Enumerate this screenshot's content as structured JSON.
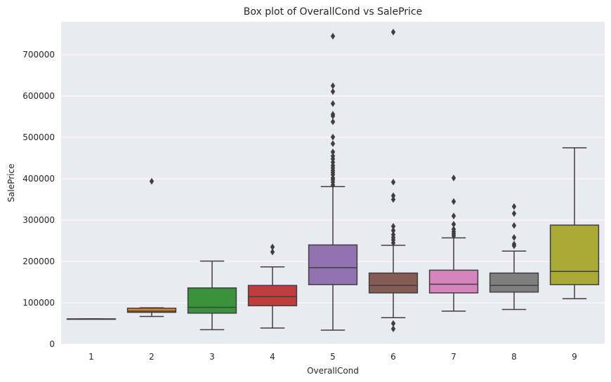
{
  "chart_data": {
    "type": "box",
    "title": "Box plot of OverallCond vs SalePrice",
    "xlabel": "OverallCond",
    "ylabel": "SalePrice",
    "ylim": [
      0,
      780000
    ],
    "yticks": [
      0,
      100000,
      200000,
      300000,
      400000,
      500000,
      600000,
      700000
    ],
    "ytick_labels": [
      "0",
      "100000",
      "200000",
      "300000",
      "400000",
      "500000",
      "600000",
      "700000"
    ],
    "grid": true,
    "categories": [
      "1",
      "2",
      "3",
      "4",
      "5",
      "6",
      "7",
      "8",
      "9"
    ],
    "boxes": [
      {
        "category": "1",
        "whisker_low": 61000,
        "q1": 61000,
        "median": 61000,
        "q3": 61000,
        "whisker_high": 61000,
        "color": "#3274a1",
        "outliers": []
      },
      {
        "category": "2",
        "whisker_low": 67000,
        "q1": 77000,
        "median": 80000,
        "q3": 87000,
        "whisker_high": 88000,
        "color": "#e1812c",
        "outliers": [
          394000
        ]
      },
      {
        "category": "3",
        "whisker_low": 35000,
        "q1": 75000,
        "median": 89000,
        "q3": 136000,
        "whisker_high": 201000,
        "color": "#3a923a",
        "outliers": []
      },
      {
        "category": "4",
        "whisker_low": 39000,
        "q1": 93000,
        "median": 115000,
        "q3": 142000,
        "whisker_high": 187000,
        "color": "#c03d3e",
        "outliers": [
          223000,
          235000
        ]
      },
      {
        "category": "5",
        "whisker_low": 34000,
        "q1": 144000,
        "median": 185000,
        "q3": 240000,
        "whisker_high": 381000,
        "color": "#9372b2",
        "outliers": [
          385000,
          392000,
          398000,
          402000,
          410000,
          415000,
          420000,
          426000,
          432000,
          440000,
          448000,
          455000,
          465000,
          485000,
          501000,
          538000,
          552000,
          556000,
          582000,
          611000,
          625000,
          745000
        ]
      },
      {
        "category": "6",
        "whisker_low": 64000,
        "q1": 124000,
        "median": 142000,
        "q3": 172000,
        "whisker_high": 239000,
        "color": "#845b53",
        "outliers": [
          37000,
          50000,
          245000,
          252000,
          258000,
          265000,
          275000,
          285000,
          350000,
          359000,
          392000,
          755000
        ]
      },
      {
        "category": "7",
        "whisker_low": 80000,
        "q1": 124000,
        "median": 145000,
        "q3": 179000,
        "whisker_high": 257000,
        "color": "#d684bd",
        "outliers": [
          262000,
          267000,
          272000,
          278000,
          290000,
          310000,
          345000,
          402000
        ]
      },
      {
        "category": "8",
        "whisker_low": 84000,
        "q1": 126000,
        "median": 142000,
        "q3": 172000,
        "whisker_high": 225000,
        "color": "#7f7f7f",
        "outliers": [
          238000,
          242000,
          258000,
          287000,
          316000,
          333000
        ]
      },
      {
        "category": "9",
        "whisker_low": 110000,
        "q1": 144000,
        "median": 176000,
        "q3": 288000,
        "whisker_high": 475000,
        "color": "#a9aa35",
        "outliers": []
      }
    ]
  }
}
